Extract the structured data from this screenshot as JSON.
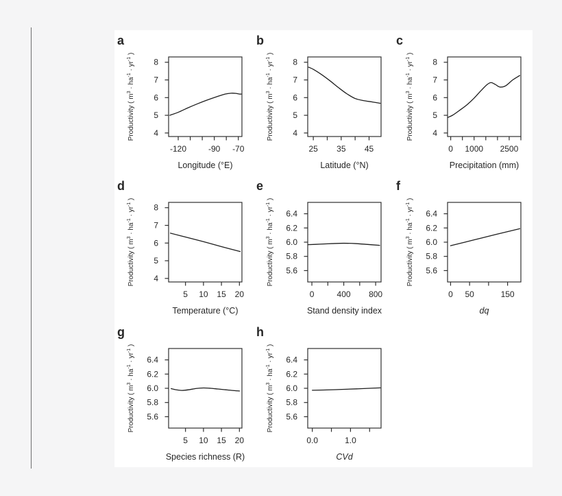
{
  "figure": {
    "background_color": "#f5f5f6",
    "canvas_color": "#ffffff",
    "line_color": "#1d1d1d",
    "axis_color": "#2e2e2e",
    "text_color": "#262626",
    "ylabel": "Productivity ( m³ · ha⁻¹ · yr⁻¹ )",
    "ylabel_parts": [
      {
        "text": "Productivity ( m",
        "sup": false
      },
      {
        "text": "3",
        "sup": true
      },
      {
        "text": " · ha",
        "sup": false
      },
      {
        "text": "-1",
        "sup": true
      },
      {
        "text": " · yr",
        "sup": false
      },
      {
        "text": "-1",
        "sup": true
      },
      {
        "text": " )",
        "sup": false
      }
    ]
  },
  "chart_data": [
    {
      "panel": "a",
      "type": "line",
      "title": "",
      "xlabel": "Longitude (°E)",
      "xlabel_style": "normal",
      "ylabel": "Productivity ( m³ · ha⁻¹ · yr⁻¹ )",
      "xlim": [
        -128,
        -67
      ],
      "ylim": [
        3.8,
        8.3
      ],
      "xticks": [
        -120,
        -110,
        -100,
        -90,
        -80,
        -70
      ],
      "xtick_labels": [
        "-120",
        "",
        "",
        "-90",
        "",
        "-70"
      ],
      "yticks": [
        4,
        5,
        6,
        7,
        8
      ],
      "ytick_labels": [
        "4",
        "5",
        "6",
        "7",
        "8"
      ],
      "x": [
        -127,
        -120,
        -112,
        -104,
        -96,
        -88,
        -81,
        -76,
        -72,
        -69,
        -67.5
      ],
      "y": [
        5.0,
        5.17,
        5.42,
        5.65,
        5.86,
        6.05,
        6.2,
        6.25,
        6.24,
        6.2,
        6.2
      ],
      "grid": false,
      "legend": "none"
    },
    {
      "panel": "b",
      "type": "line",
      "title": "",
      "xlabel": "Latitude (°N)",
      "xlabel_style": "normal",
      "ylabel": "Productivity ( m³ · ha⁻¹ · yr⁻¹ )",
      "xlim": [
        23,
        49.3
      ],
      "ylim": [
        3.8,
        8.3
      ],
      "xticks": [
        25,
        30,
        35,
        40,
        45
      ],
      "xtick_labels": [
        "25",
        "",
        "35",
        "",
        "45"
      ],
      "yticks": [
        4,
        5,
        6,
        7,
        8
      ],
      "ytick_labels": [
        "4",
        "5",
        "6",
        "7",
        "8"
      ],
      "x": [
        23.3,
        25,
        28,
        31,
        34,
        37,
        40,
        43,
        46,
        49
      ],
      "y": [
        7.72,
        7.6,
        7.3,
        6.95,
        6.57,
        6.22,
        5.95,
        5.83,
        5.76,
        5.68
      ],
      "grid": false,
      "legend": "none"
    },
    {
      "panel": "c",
      "type": "line",
      "title": "",
      "xlabel": "Precipitation (mm)",
      "xlabel_style": "normal",
      "ylabel": "Productivity ( m³ · ha⁻¹ · yr⁻¹ )",
      "xlim": [
        -135,
        3000
      ],
      "ylim": [
        3.8,
        8.3
      ],
      "xticks": [
        0,
        500,
        1000,
        1500,
        2000,
        2500,
        3000
      ],
      "xtick_labels": [
        "0",
        "",
        "1000",
        "",
        "",
        "2500",
        ""
      ],
      "yticks": [
        4,
        5,
        6,
        7,
        8
      ],
      "ytick_labels": [
        "4",
        "5",
        "6",
        "7",
        "8"
      ],
      "x": [
        -120,
        100,
        400,
        700,
        1000,
        1300,
        1550,
        1720,
        1900,
        2100,
        2350,
        2650,
        2950
      ],
      "y": [
        4.88,
        5.02,
        5.3,
        5.6,
        5.97,
        6.4,
        6.73,
        6.85,
        6.75,
        6.6,
        6.67,
        7.0,
        7.25
      ],
      "grid": false,
      "legend": "none"
    },
    {
      "panel": "d",
      "type": "line",
      "title": "",
      "xlabel": "Temperature (°C)",
      "xlabel_style": "normal",
      "ylabel": "Productivity ( m³ · ha⁻¹ · yr⁻¹ )",
      "xlim": [
        0.3,
        20.7
      ],
      "ylim": [
        3.8,
        8.3
      ],
      "xticks": [
        5,
        10,
        15,
        20
      ],
      "xtick_labels": [
        "5",
        "10",
        "15",
        "20"
      ],
      "yticks": [
        4,
        5,
        6,
        7,
        8
      ],
      "ytick_labels": [
        "4",
        "5",
        "6",
        "7",
        "8"
      ],
      "x": [
        0.8,
        5,
        10,
        15,
        20.2
      ],
      "y": [
        6.56,
        6.34,
        6.08,
        5.8,
        5.52
      ],
      "grid": false,
      "legend": "none"
    },
    {
      "panel": "e",
      "type": "line",
      "title": "",
      "xlabel": "Stand density index",
      "xlabel_style": "normal",
      "ylabel": "Productivity ( m³ · ha⁻¹ · yr⁻¹ )",
      "xlim": [
        -52,
        868
      ],
      "ylim": [
        5.44,
        6.56
      ],
      "xticks": [
        0,
        200,
        400,
        600,
        800
      ],
      "xtick_labels": [
        "0",
        "",
        "400",
        "",
        "800"
      ],
      "yticks": [
        5.6,
        5.8,
        6.0,
        6.2,
        6.4
      ],
      "ytick_labels": [
        "5.6",
        "5.8",
        "6.0",
        "6.2",
        "6.4"
      ],
      "x": [
        -45,
        100,
        250,
        400,
        550,
        700,
        850
      ],
      "y": [
        5.965,
        5.972,
        5.98,
        5.985,
        5.98,
        5.968,
        5.955
      ],
      "grid": false,
      "legend": "none"
    },
    {
      "panel": "f",
      "type": "line",
      "title": "",
      "xlabel": "dq",
      "xlabel_style": "italic",
      "ylabel": "Productivity ( m³ · ha⁻¹ · yr⁻¹ )",
      "xlim": [
        -8,
        185
      ],
      "ylim": [
        5.44,
        6.56
      ],
      "xticks": [
        0,
        50,
        100,
        150
      ],
      "xtick_labels": [
        "0",
        "50",
        "",
        "150"
      ],
      "yticks": [
        5.6,
        5.8,
        6.0,
        6.2,
        6.4
      ],
      "ytick_labels": [
        "5.6",
        "5.8",
        "6.0",
        "6.2",
        "6.4"
      ],
      "x": [
        0,
        60,
        120,
        182
      ],
      "y": [
        5.95,
        6.03,
        6.11,
        6.19
      ],
      "grid": false,
      "legend": "none"
    },
    {
      "panel": "g",
      "type": "line",
      "title": "",
      "xlabel": "Species richness (R)",
      "xlabel_style": "normal",
      "ylabel": "Productivity ( m³ · ha⁻¹ · yr⁻¹ )",
      "xlim": [
        0.3,
        20.7
      ],
      "ylim": [
        5.44,
        6.56
      ],
      "xticks": [
        5,
        10,
        15,
        20
      ],
      "xtick_labels": [
        "5",
        "10",
        "15",
        "20"
      ],
      "yticks": [
        5.6,
        5.8,
        6.0,
        6.2,
        6.4
      ],
      "ytick_labels": [
        "5.6",
        "5.8",
        "6.0",
        "6.2",
        "6.4"
      ],
      "x": [
        1,
        2.5,
        4,
        6,
        8,
        10,
        12,
        14,
        16,
        18,
        20
      ],
      "y": [
        5.995,
        5.978,
        5.97,
        5.98,
        5.998,
        6.005,
        6.0,
        5.99,
        5.98,
        5.97,
        5.962
      ],
      "grid": false,
      "legend": "none"
    },
    {
      "panel": "h",
      "type": "line",
      "title": "",
      "xlabel": "CVd",
      "xlabel_style": "italic",
      "ylabel": "Productivity ( m³ · ha⁻¹ · yr⁻¹ )",
      "xlim": [
        -0.12,
        1.8
      ],
      "ylim": [
        5.44,
        6.56
      ],
      "xticks": [
        0,
        0.5,
        1,
        1.5
      ],
      "xtick_labels": [
        "0.0",
        "",
        "1.0",
        ""
      ],
      "yticks": [
        5.6,
        5.8,
        6.0,
        6.2,
        6.4
      ],
      "ytick_labels": [
        "5.6",
        "5.8",
        "6.0",
        "6.2",
        "6.4"
      ],
      "x": [
        0,
        0.3,
        0.6,
        0.9,
        1.2,
        1.5,
        1.78
      ],
      "y": [
        5.972,
        5.976,
        5.981,
        5.987,
        5.993,
        6.0,
        6.006
      ],
      "grid": false,
      "legend": "none"
    }
  ]
}
